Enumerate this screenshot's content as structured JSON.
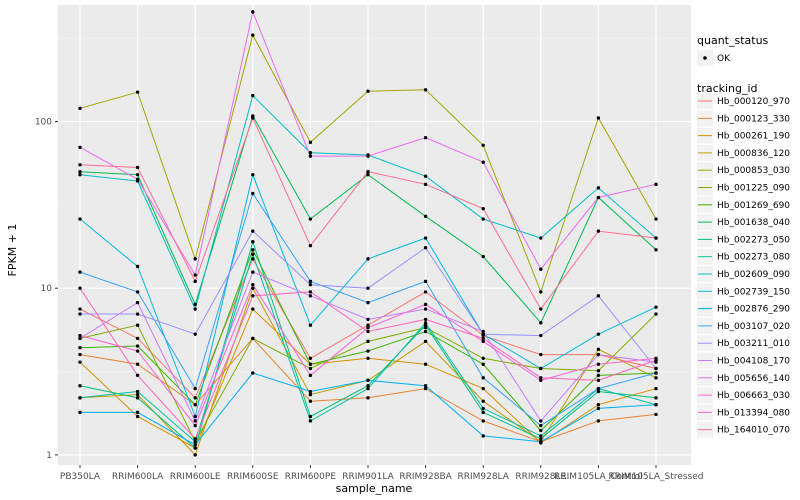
{
  "chart_data": {
    "type": "line",
    "xlabel": "sample_name",
    "ylabel": "FPKM + 1",
    "y_scale": "log10",
    "ylim": [
      0.87,
      500
    ],
    "y_ticks": [
      {
        "value": 1,
        "label": "1"
      },
      {
        "value": 10,
        "label": "10"
      },
      {
        "value": 100,
        "label": "100"
      }
    ],
    "grid": true,
    "legend_position": "right",
    "categories": [
      "PB350LA",
      "RRIM600LA",
      "RRIM600LE",
      "RRIM600SE",
      "RRIM600PE",
      "RRIM901LA",
      "RRIM928BA",
      "RRIM928LA",
      "RRIM928LE",
      "RRIM105LA_Control",
      "RRIM105LA_Stressed"
    ],
    "shape_legend": {
      "title": "quant_status",
      "entries": [
        {
          "label": "OK"
        }
      ]
    },
    "color_legend_title": "tracking_id",
    "series": [
      {
        "name": "Hb_000120_970",
        "color": "#F8766D",
        "values": [
          7.5,
          5.0,
          2.2,
          15.0,
          3.8,
          6.0,
          9.5,
          5.2,
          4.0,
          4.0,
          3.3
        ]
      },
      {
        "name": "Hb_000123_330",
        "color": "#EA8331",
        "values": [
          4.0,
          3.5,
          2.0,
          5.0,
          2.1,
          2.2,
          2.5,
          1.6,
          1.2,
          1.6,
          1.75
        ]
      },
      {
        "name": "Hb_000261_190",
        "color": "#D89000",
        "values": [
          3.6,
          1.7,
          1.1,
          7.5,
          3.5,
          3.8,
          3.5,
          2.5,
          1.18,
          2.0,
          2.5
        ]
      },
      {
        "name": "Hb_000836_120",
        "color": "#C09B00",
        "values": [
          2.2,
          2.3,
          1.0,
          10.0,
          2.3,
          2.8,
          4.8,
          2.1,
          1.2,
          4.3,
          2.9
        ]
      },
      {
        "name": "Hb_000853_030",
        "color": "#A3A500",
        "values": [
          120,
          150,
          15.0,
          330,
          75,
          152,
          155,
          72,
          9.5,
          105,
          26
        ]
      },
      {
        "name": "Hb_001225_090",
        "color": "#7CAE00",
        "values": [
          5.0,
          6.0,
          1.2,
          5.0,
          3.3,
          4.8,
          5.8,
          3.8,
          3.3,
          3.2,
          7.0
        ]
      },
      {
        "name": "Hb_001269_690",
        "color": "#39B600",
        "values": [
          4.4,
          4.5,
          2.0,
          17.0,
          3.5,
          4.2,
          5.5,
          3.5,
          1.4,
          3.0,
          3.1
        ]
      },
      {
        "name": "Hb_001638_040",
        "color": "#00BB4E",
        "values": [
          50,
          48,
          8.0,
          108,
          26,
          48,
          27,
          15.5,
          6.2,
          35,
          17
        ]
      },
      {
        "name": "Hb_002273_050",
        "color": "#00BF7D",
        "values": [
          2.6,
          2.2,
          1.1,
          19.0,
          1.7,
          2.6,
          6.0,
          1.8,
          1.25,
          2.4,
          2.2
        ]
      },
      {
        "name": "Hb_002273_080",
        "color": "#00C1A3",
        "values": [
          2.2,
          2.4,
          1.2,
          16.0,
          1.6,
          2.5,
          6.2,
          1.9,
          1.3,
          2.5,
          2.0
        ]
      },
      {
        "name": "Hb_002609_090",
        "color": "#00BFC4",
        "values": [
          48,
          44,
          7.5,
          143,
          65,
          63,
          47,
          26,
          20,
          40,
          20
        ]
      },
      {
        "name": "Hb_002739_150",
        "color": "#00BAE0",
        "values": [
          26,
          13.5,
          1.7,
          48,
          6.0,
          15.0,
          20,
          5.3,
          3.3,
          5.3,
          7.7
        ]
      },
      {
        "name": "Hb_002876_290",
        "color": "#00B0F6",
        "values": [
          1.8,
          1.8,
          1.15,
          3.1,
          2.4,
          2.8,
          2.6,
          1.3,
          1.2,
          1.9,
          2.0
        ]
      },
      {
        "name": "Hb_003107_020",
        "color": "#35A2FF",
        "values": [
          12.5,
          9.5,
          2.5,
          37,
          11.0,
          8.2,
          11.0,
          2.9,
          1.5,
          2.5,
          3.1
        ]
      },
      {
        "name": "Hb_003211_010",
        "color": "#9590FF",
        "values": [
          7.0,
          7.0,
          5.3,
          22,
          10.5,
          10.0,
          17.5,
          5.3,
          5.2,
          9.0,
          3.3
        ]
      },
      {
        "name": "Hb_004108_170",
        "color": "#C77CFF",
        "values": [
          5.0,
          8.2,
          1.6,
          12.5,
          9.0,
          6.5,
          7.5,
          5.5,
          1.6,
          4.0,
          3.6
        ]
      },
      {
        "name": "Hb_005656_140",
        "color": "#E76BF3",
        "values": [
          70,
          45,
          12.0,
          455,
          62,
          62,
          80,
          57,
          13.0,
          35,
          42
        ]
      },
      {
        "name": "Hb_006663_030",
        "color": "#FA62DB",
        "values": [
          5.2,
          4.2,
          1.5,
          10.5,
          3.0,
          5.8,
          8.0,
          4.8,
          2.8,
          3.5,
          3.8
        ]
      },
      {
        "name": "Hb_013394_080",
        "color": "#FF62BC",
        "values": [
          10.0,
          3.0,
          1.25,
          9.0,
          9.5,
          5.5,
          6.5,
          5.0,
          2.9,
          2.8,
          3.7
        ]
      },
      {
        "name": "Hb_164010_070",
        "color": "#FF6C91",
        "values": [
          55,
          53,
          11.0,
          105,
          18,
          50,
          42,
          30,
          7.5,
          22,
          20
        ]
      }
    ]
  }
}
